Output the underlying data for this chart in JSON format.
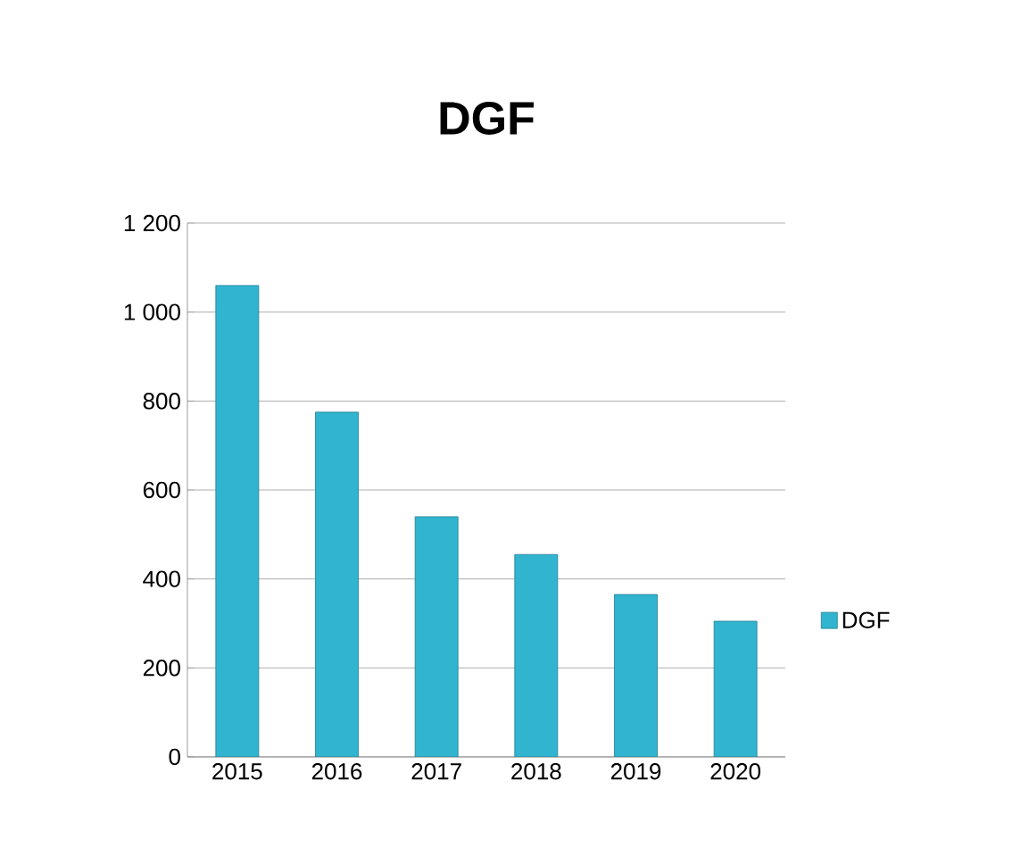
{
  "chart_data": {
    "type": "bar",
    "title": "DGF",
    "categories": [
      "2015",
      "2016",
      "2017",
      "2018",
      "2019",
      "2020"
    ],
    "series": [
      {
        "name": "DGF",
        "color": "#31b4cf",
        "values": [
          1060,
          775,
          540,
          455,
          365,
          305
        ]
      }
    ],
    "ylim": [
      0,
      1200
    ],
    "yticks": [
      0,
      200,
      400,
      600,
      800,
      {
        "value": 1000,
        "label": "1 000"
      },
      {
        "value": 1200,
        "label": "1 200"
      }
    ],
    "grid": "y",
    "legend": "right"
  }
}
